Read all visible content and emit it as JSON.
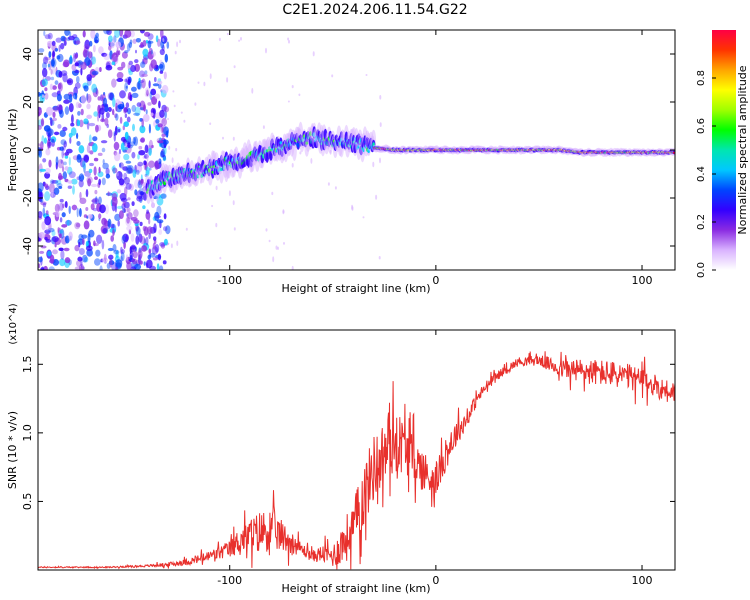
{
  "chart_data": [
    {
      "type": "heatmap",
      "title": "C2E1.2024.206.11.54.G22",
      "xlabel": "Height of straight line (km)",
      "ylabel": "Frequency (Hz)",
      "xlim": [
        -193,
        116
      ],
      "ylim": [
        -50,
        50
      ],
      "xticks": [
        "-100",
        "0",
        "100"
      ],
      "yticks": [
        "40",
        "20",
        "0",
        "-20",
        "-40"
      ],
      "colorbar": {
        "label": "Normalized spectral amplitude",
        "range": [
          0.0,
          1.0
        ],
        "ticks": [
          "0.0",
          "0.2",
          "0.4",
          "0.6",
          "0.8"
        ],
        "colors": [
          "#ffffff",
          "#d9b3ff",
          "#8a2be2",
          "#3300ff",
          "#0044ff",
          "#00c8ff",
          "#00e6b0",
          "#00ff00",
          "#a0ff00",
          "#ffff00",
          "#ffa500",
          "#ff3300",
          "#ff0044"
        ]
      },
      "ridge": {
        "x": [
          -140,
          -130,
          -120,
          -110,
          -100,
          -90,
          -80,
          -70,
          -60,
          -50,
          -40,
          -30,
          -20,
          -10,
          0,
          10,
          20,
          30,
          40,
          50,
          60,
          70,
          80,
          90,
          100,
          110,
          116
        ],
        "y": [
          -16,
          -12,
          -10,
          -8,
          -5,
          -3,
          0,
          3,
          5,
          4,
          3,
          1,
          0,
          0,
          0,
          0,
          0,
          0,
          0,
          0,
          0,
          -1,
          -1,
          -1,
          -1,
          -1,
          -1
        ]
      },
      "noise_region_x": [
        -193,
        -130
      ],
      "grid": false,
      "legend": "none"
    },
    {
      "type": "line",
      "xlabel": "Height of straight line (km)",
      "ylabel": "SNR (10 * v/v)",
      "multiplier": "(x10^4)",
      "xlim": [
        -193,
        116
      ],
      "ylim": [
        0,
        1.75
      ],
      "xticks": [
        "-100",
        "0",
        "100"
      ],
      "yticks": [
        "1.5",
        "1.0",
        "0.5"
      ],
      "color": "#e8302c",
      "series": [
        {
          "x": [
            -193,
            -160,
            -140,
            -130,
            -120,
            -110,
            -100,
            -95,
            -90,
            -85,
            -80,
            -75,
            -70,
            -65,
            -60,
            -55,
            -50,
            -45,
            -40,
            -35,
            -30,
            -25,
            -20,
            -15,
            -10,
            -5,
            0,
            5,
            10,
            15,
            20,
            25,
            30,
            40,
            50,
            60,
            70,
            80,
            90,
            100,
            110,
            116
          ],
          "y": [
            0.02,
            0.02,
            0.03,
            0.04,
            0.06,
            0.1,
            0.15,
            0.22,
            0.25,
            0.28,
            0.3,
            0.25,
            0.2,
            0.15,
            0.1,
            0.12,
            0.1,
            0.2,
            0.3,
            0.55,
            0.75,
            0.85,
            0.95,
            0.9,
            0.8,
            0.7,
            0.65,
            0.85,
            1.0,
            1.1,
            1.25,
            1.35,
            1.42,
            1.52,
            1.53,
            1.47,
            1.45,
            1.44,
            1.42,
            1.38,
            1.32,
            1.3
          ],
          "noise": [
            0.005,
            0.005,
            0.01,
            0.02,
            0.03,
            0.05,
            0.08,
            0.12,
            0.15,
            0.2,
            0.2,
            0.15,
            0.1,
            0.06,
            0.05,
            0.08,
            0.1,
            0.2,
            0.25,
            0.3,
            0.3,
            0.3,
            0.3,
            0.25,
            0.2,
            0.2,
            0.15,
            0.15,
            0.12,
            0.08,
            0.06,
            0.05,
            0.04,
            0.04,
            0.05,
            0.08,
            0.12,
            0.12,
            0.12,
            0.12,
            0.1,
            0.1
          ]
        }
      ]
    }
  ]
}
